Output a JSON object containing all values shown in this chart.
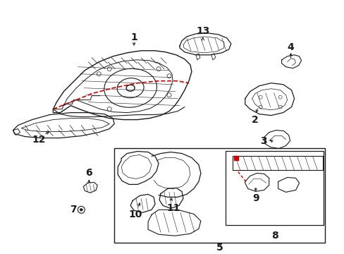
{
  "background_color": "#ffffff",
  "line_color": "#1a1a1a",
  "red_color": "#cc0000",
  "fig_width": 4.89,
  "fig_height": 3.6,
  "dpi": 100
}
